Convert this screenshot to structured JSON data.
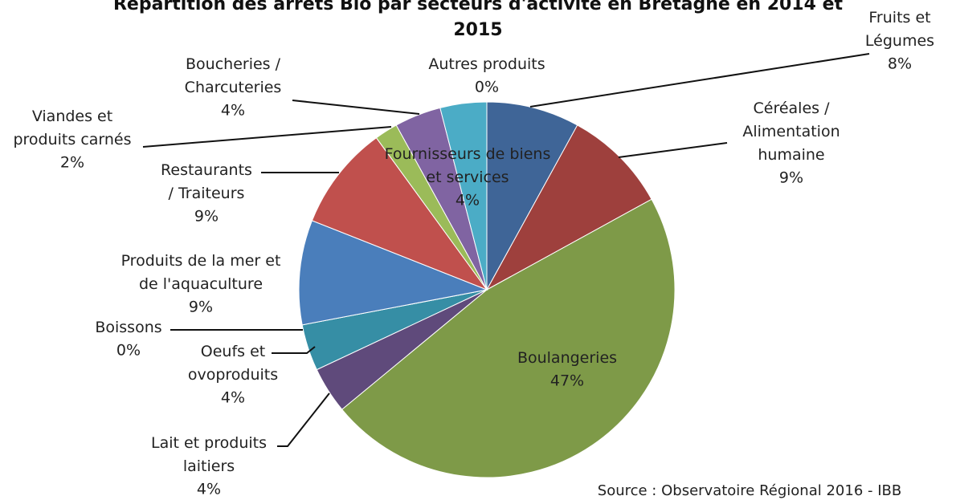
{
  "chart_data": {
    "type": "pie",
    "title": "Répartition des arrêts Bio par secteurs d'activité en Bretagne en 2014 et 2015",
    "categories": [
      "Fruits et Légumes",
      "Céréales / Alimentation humaine",
      "Boulangeries",
      "Lait et produits laitiers",
      "Oeufs et ovoproduits",
      "Boissons",
      "Produits de la mer et de l'aquaculture",
      "Restaurants / Traiteurs",
      "Viandes et produits carnés",
      "Boucheries / Charcuteries",
      "Fournisseurs de biens et services",
      "Autres produits"
    ],
    "values": [
      8,
      9,
      47,
      4,
      4,
      0,
      9,
      9,
      2,
      4,
      4,
      0
    ],
    "value_labels": [
      "8%",
      "9%",
      "47%",
      "4%",
      "4%",
      "0%",
      "9%",
      "9%",
      "2%",
      "4%",
      "4%",
      "0%"
    ],
    "colors": [
      "#3f6597",
      "#9e403d",
      "#7e9a48",
      "#5f4a7b",
      "#368ea5",
      "#2c4d75",
      "#4a7ebb",
      "#c0504d",
      "#9bbb59",
      "#8064a2",
      "#4bacc6",
      "#f79646"
    ],
    "source": "Source : Observatoire Régional 2016 - IBB"
  }
}
